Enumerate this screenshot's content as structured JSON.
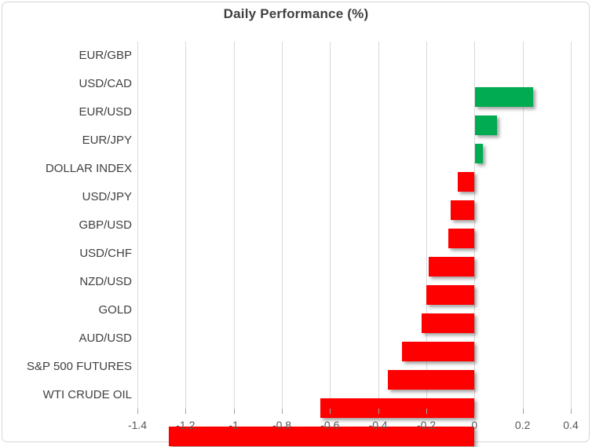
{
  "chart_data": {
    "type": "bar",
    "orientation": "horizontal",
    "title": "Daily Performance (%)",
    "categories": [
      "EUR/GBP",
      "USD/CAD",
      "EUR/USD",
      "EUR/JPY",
      "DOLLAR INDEX",
      "USD/JPY",
      "GBP/USD",
      "USD/CHF",
      "NZD/USD",
      "GOLD",
      "AUD/USD",
      "S&P 500 FUTURES",
      "WTI CRUDE OIL"
    ],
    "values": [
      0.24,
      0.09,
      0.03,
      -0.07,
      -0.1,
      -0.11,
      -0.19,
      -0.2,
      -0.22,
      -0.3,
      -0.36,
      -0.64,
      -1.27
    ],
    "xlabel": "",
    "ylabel": "",
    "xlim": [
      -1.4,
      0.4
    ],
    "x_ticks": [
      -1.4,
      -1.2,
      -1,
      -0.8,
      -0.6,
      -0.4,
      -0.2,
      0,
      0.2,
      0.4
    ],
    "x_tick_labels": [
      "-1.4",
      "-1.2",
      "-1",
      "-0.8",
      "-0.6",
      "-0.4",
      "-0.2",
      "0",
      "0.2",
      "0.4"
    ],
    "grid": true,
    "legend": false,
    "colors": {
      "positive": "#00ab51",
      "negative": "#ff0000",
      "gridline": "#d9d9d9",
      "title_text": "#404040",
      "category_text": "#404040",
      "tick_text": "#595959"
    }
  }
}
